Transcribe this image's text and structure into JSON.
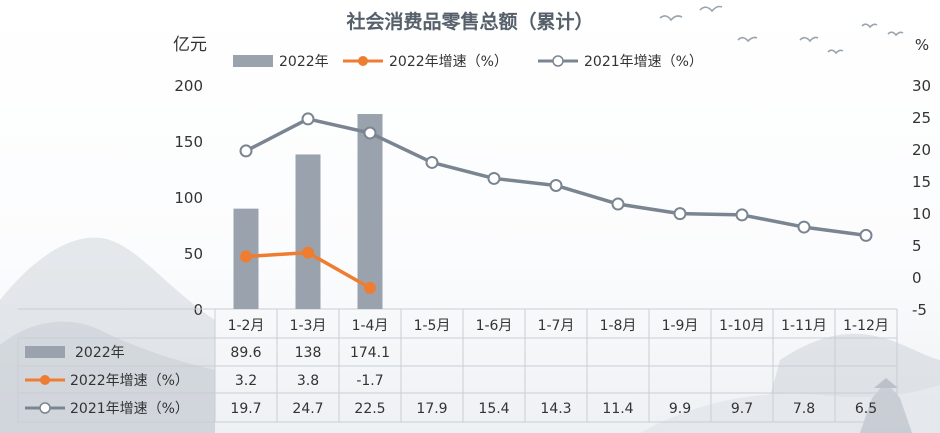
{
  "chart_data": {
    "type": "bar",
    "title": "社会消费品零售总额（累计）",
    "ylabel_left": "亿元",
    "ylabel_right": "%",
    "ylim_left": [
      0,
      200
    ],
    "yticks_left": [
      "0",
      "50",
      "100",
      "150",
      "200"
    ],
    "ylim_right": [
      -5,
      30
    ],
    "yticks_right": [
      "-5",
      "0",
      "5",
      "10",
      "15",
      "20",
      "25",
      "30"
    ],
    "categories": [
      "1-2月",
      "1-3月",
      "1-4月",
      "1-5月",
      "1-6月",
      "1-7月",
      "1-8月",
      "1-9月",
      "1-10月",
      "1-11月",
      "1-12月"
    ],
    "legend_position": "top",
    "grid": false,
    "series": [
      {
        "name": "2022年",
        "type": "bar",
        "axis": "left",
        "color": "#9aa3ad",
        "values": [
          89.6,
          138,
          174.1,
          null,
          null,
          null,
          null,
          null,
          null,
          null,
          null
        ],
        "labels": [
          "89.6",
          "138",
          "174.1",
          "",
          "",
          "",
          "",
          "",
          "",
          "",
          ""
        ]
      },
      {
        "name": "2022年增速（%）",
        "type": "line",
        "axis": "right",
        "color": "#ee7d31",
        "values": [
          3.2,
          3.8,
          -1.7,
          null,
          null,
          null,
          null,
          null,
          null,
          null,
          null
        ],
        "labels": [
          "3.2",
          "3.8",
          "-1.7",
          "",
          "",
          "",
          "",
          "",
          "",
          "",
          ""
        ]
      },
      {
        "name": "2021年增速（%）",
        "type": "line",
        "axis": "right",
        "color": "#7a8591",
        "values": [
          19.7,
          24.7,
          22.5,
          17.9,
          15.4,
          14.3,
          11.4,
          9.9,
          9.7,
          7.8,
          6.5
        ],
        "labels": [
          "19.7",
          "24.7",
          "22.5",
          "17.9",
          "15.4",
          "14.3",
          "11.4",
          "9.9",
          "9.7",
          "7.8",
          "6.5"
        ]
      }
    ]
  }
}
